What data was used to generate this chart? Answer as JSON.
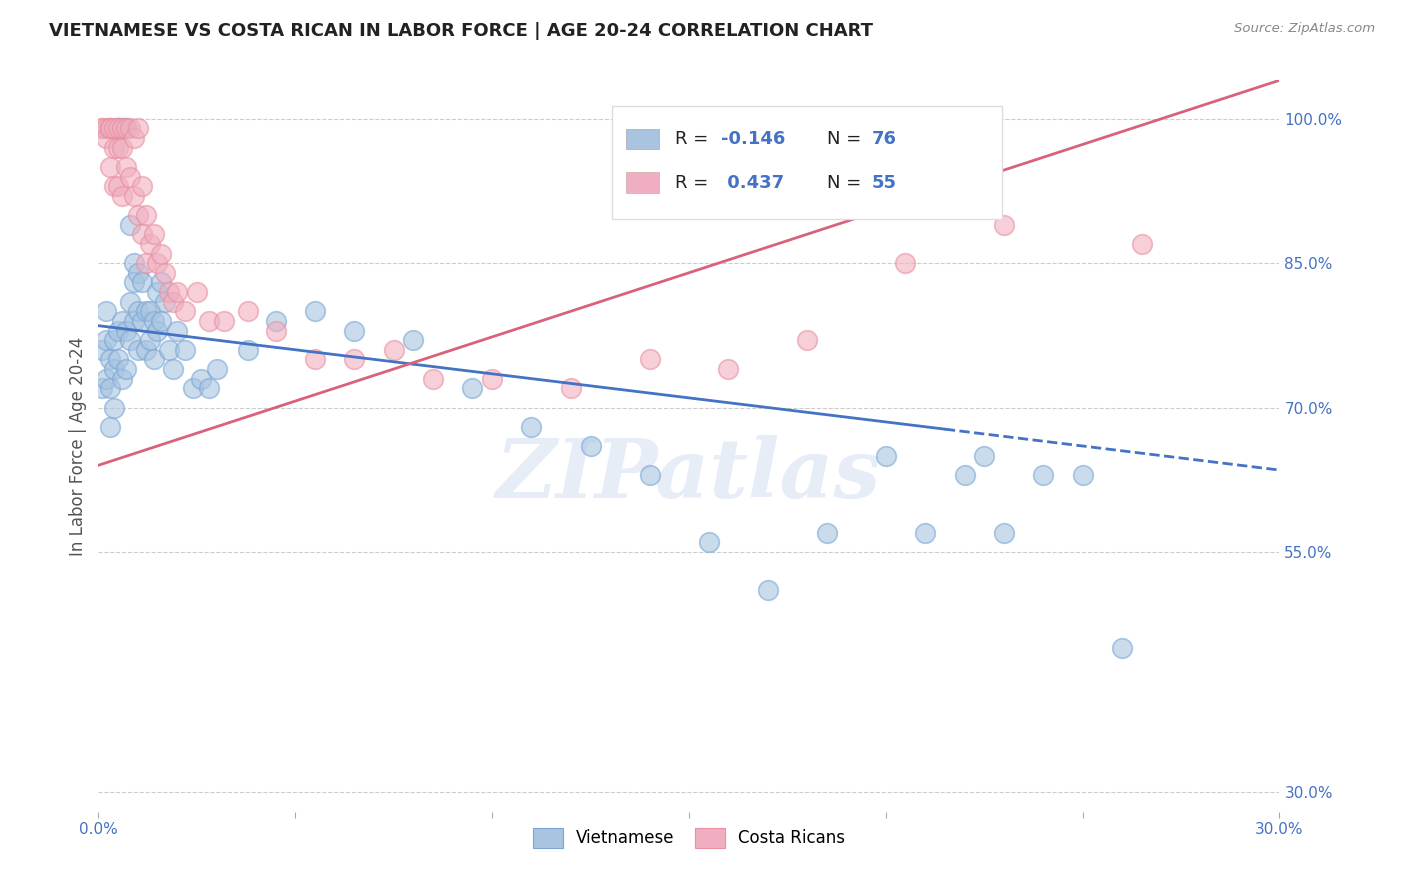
{
  "title": "VIETNAMESE VS COSTA RICAN IN LABOR FORCE | AGE 20-24 CORRELATION CHART",
  "source": "Source: ZipAtlas.com",
  "ylabel": "In Labor Force | Age 20-24",
  "xlim": [
    0.0,
    0.3
  ],
  "ylim": [
    0.28,
    1.04
  ],
  "xtick_positions": [
    0.0,
    0.05,
    0.1,
    0.15,
    0.2,
    0.25,
    0.3
  ],
  "xtick_labels": [
    "0.0%",
    "",
    "",
    "",
    "",
    "",
    "30.0%"
  ],
  "ytick_vals": [
    0.3,
    0.55,
    0.7,
    0.85,
    1.0
  ],
  "ytick_labels": [
    "30.0%",
    "55.0%",
    "70.0%",
    "85.0%",
    "100.0%"
  ],
  "legend_labels": [
    "Vietnamese",
    "Costa Ricans"
  ],
  "r_vietnamese": -0.146,
  "n_vietnamese": 76,
  "r_costa": 0.437,
  "n_costa": 55,
  "blue_color": "#a8c4e0",
  "pink_color": "#f0afc0",
  "blue_edge_color": "#7aa6d6",
  "pink_edge_color": "#e8909f",
  "blue_line_color": "#4472c4",
  "pink_line_color": "#d9627a",
  "watermark": "ZIPatlas",
  "background_color": "#ffffff",
  "grid_color": "#cccccc",
  "title_color": "#222222",
  "axis_label_color": "#4472c4",
  "vietnamese_x": [
    0.001,
    0.001,
    0.002,
    0.002,
    0.002,
    0.003,
    0.003,
    0.003,
    0.003,
    0.004,
    0.004,
    0.004,
    0.005,
    0.005,
    0.005,
    0.005,
    0.005,
    0.005,
    0.006,
    0.006,
    0.006,
    0.006,
    0.007,
    0.007,
    0.007,
    0.007,
    0.008,
    0.008,
    0.008,
    0.009,
    0.009,
    0.009,
    0.01,
    0.01,
    0.01,
    0.011,
    0.011,
    0.012,
    0.012,
    0.013,
    0.013,
    0.014,
    0.014,
    0.015,
    0.015,
    0.016,
    0.016,
    0.017,
    0.018,
    0.019,
    0.02,
    0.022,
    0.024,
    0.026,
    0.028,
    0.03,
    0.038,
    0.045,
    0.055,
    0.065,
    0.08,
    0.095,
    0.11,
    0.125,
    0.14,
    0.155,
    0.17,
    0.185,
    0.2,
    0.21,
    0.22,
    0.225,
    0.23,
    0.24,
    0.25,
    0.26
  ],
  "vietnamese_y": [
    0.76,
    0.72,
    0.8,
    0.73,
    0.77,
    0.75,
    0.72,
    0.68,
    0.99,
    0.77,
    0.74,
    0.7,
    0.99,
    0.99,
    0.99,
    0.99,
    0.78,
    0.75,
    0.99,
    0.99,
    0.79,
    0.73,
    0.99,
    0.99,
    0.78,
    0.74,
    0.89,
    0.81,
    0.77,
    0.85,
    0.83,
    0.79,
    0.84,
    0.8,
    0.76,
    0.83,
    0.79,
    0.8,
    0.76,
    0.8,
    0.77,
    0.79,
    0.75,
    0.82,
    0.78,
    0.83,
    0.79,
    0.81,
    0.76,
    0.74,
    0.78,
    0.76,
    0.72,
    0.73,
    0.72,
    0.74,
    0.76,
    0.79,
    0.8,
    0.78,
    0.77,
    0.72,
    0.68,
    0.66,
    0.63,
    0.56,
    0.51,
    0.57,
    0.65,
    0.57,
    0.63,
    0.65,
    0.57,
    0.63,
    0.63,
    0.45
  ],
  "costa_x": [
    0.001,
    0.001,
    0.002,
    0.002,
    0.003,
    0.003,
    0.003,
    0.003,
    0.004,
    0.004,
    0.004,
    0.005,
    0.005,
    0.005,
    0.006,
    0.006,
    0.006,
    0.007,
    0.007,
    0.008,
    0.008,
    0.009,
    0.009,
    0.01,
    0.01,
    0.011,
    0.011,
    0.012,
    0.012,
    0.013,
    0.014,
    0.015,
    0.016,
    0.017,
    0.018,
    0.019,
    0.02,
    0.022,
    0.025,
    0.028,
    0.032,
    0.038,
    0.045,
    0.055,
    0.065,
    0.075,
    0.085,
    0.1,
    0.12,
    0.14,
    0.16,
    0.18,
    0.205,
    0.23,
    0.265
  ],
  "costa_y": [
    0.99,
    0.99,
    0.99,
    0.98,
    0.99,
    0.99,
    0.99,
    0.95,
    0.99,
    0.97,
    0.93,
    0.99,
    0.97,
    0.93,
    0.99,
    0.97,
    0.92,
    0.99,
    0.95,
    0.99,
    0.94,
    0.98,
    0.92,
    0.99,
    0.9,
    0.93,
    0.88,
    0.9,
    0.85,
    0.87,
    0.88,
    0.85,
    0.86,
    0.84,
    0.82,
    0.81,
    0.82,
    0.8,
    0.82,
    0.79,
    0.79,
    0.8,
    0.78,
    0.75,
    0.75,
    0.76,
    0.73,
    0.73,
    0.72,
    0.75,
    0.74,
    0.77,
    0.85,
    0.89,
    0.87
  ],
  "viet_line_x0": 0.0,
  "viet_line_y0": 0.785,
  "viet_line_x1": 0.3,
  "viet_line_y1": 0.635,
  "viet_line_solid_end": 0.215,
  "costa_line_x0": 0.0,
  "costa_line_y0": 0.64,
  "costa_line_x1": 0.3,
  "costa_line_y1": 1.04
}
